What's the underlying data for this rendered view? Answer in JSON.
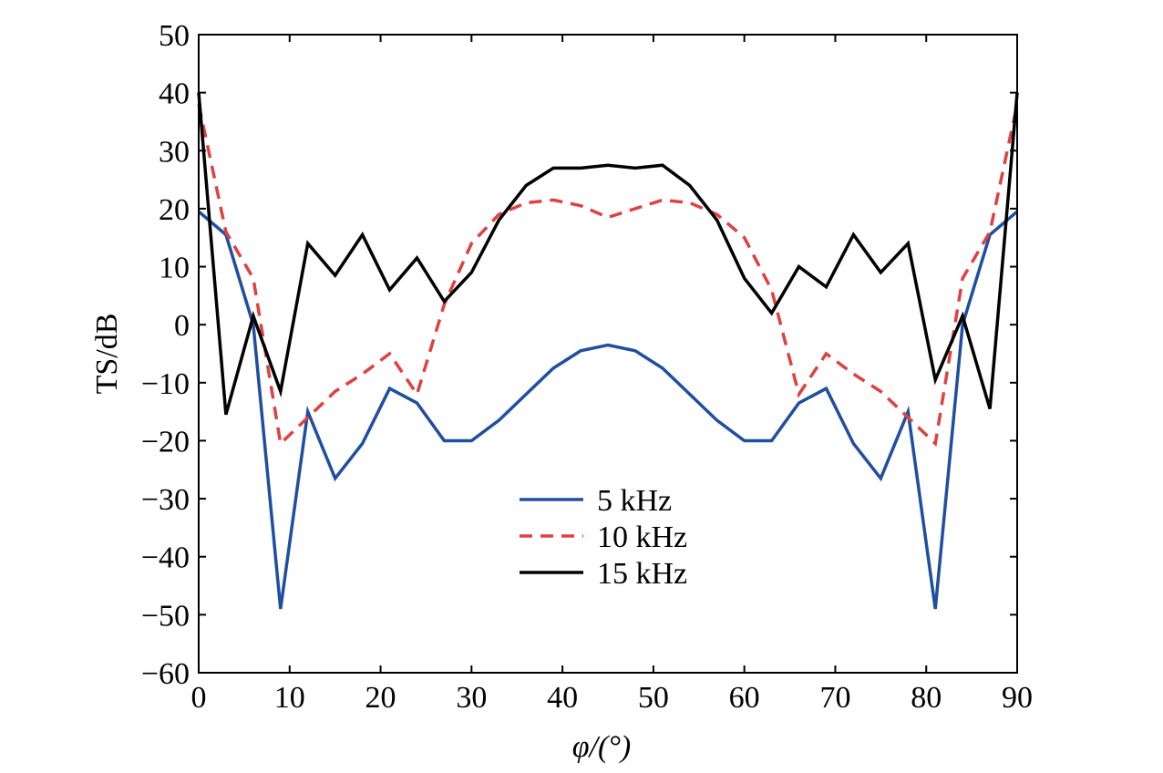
{
  "chart_data": {
    "type": "line",
    "xlabel": "φ/(°)",
    "ylabel": "TS/dB",
    "xlim": [
      0,
      90
    ],
    "ylim": [
      -60,
      50
    ],
    "xticks": [
      "0",
      "10",
      "20",
      "30",
      "40",
      "50",
      "60",
      "70",
      "80",
      "90"
    ],
    "yticks": [
      "50",
      "40",
      "30",
      "20",
      "10",
      "0",
      "−10",
      "−20",
      "−30",
      "−40",
      "−50",
      "−60"
    ],
    "grid": false,
    "legend_position": "center-bottom",
    "x": [
      0,
      3,
      6,
      9,
      12,
      15,
      18,
      21,
      24,
      27,
      30,
      33,
      36,
      39,
      42,
      45,
      48,
      51,
      54,
      57,
      60,
      63,
      66,
      69,
      72,
      75,
      78,
      81,
      84,
      87,
      90
    ],
    "series": [
      {
        "name": "5 kHz",
        "color": "#1f4fa0",
        "dash": "solid",
        "values": [
          19.5,
          15.5,
          0,
          -49,
          -15,
          -26.5,
          -20.5,
          -11,
          -13.5,
          -20,
          -20,
          -16.5,
          -12,
          -7.5,
          -4.5,
          -3.5,
          -4.5,
          -7.5,
          -12,
          -16.5,
          -20,
          -20,
          -13.5,
          -11,
          -20.5,
          -26.5,
          -15,
          -49,
          0,
          15.5,
          19.5
        ]
      },
      {
        "name": "10 kHz",
        "color": "#e04040",
        "dash": "dashed",
        "values": [
          38,
          16,
          8,
          -20.5,
          -16,
          -11.5,
          -8.5,
          -5,
          -12,
          3.5,
          14,
          19,
          21,
          21.5,
          20.5,
          18.5,
          20,
          21.5,
          21,
          19,
          15,
          6,
          -12,
          -5,
          -8.5,
          -11.5,
          -16,
          -20.5,
          8,
          16,
          38
        ]
      },
      {
        "name": "15 kHz",
        "color": "#000000",
        "dash": "solid",
        "values": [
          40,
          -15.5,
          1.5,
          -11.5,
          14,
          8.5,
          15.5,
          6,
          11.5,
          4,
          9,
          18,
          24,
          27,
          27,
          27.5,
          27,
          27.5,
          24,
          18,
          8,
          2,
          10,
          6.5,
          15.5,
          9,
          14,
          -9.5,
          1.5,
          -14.5,
          40
        ]
      }
    ]
  }
}
